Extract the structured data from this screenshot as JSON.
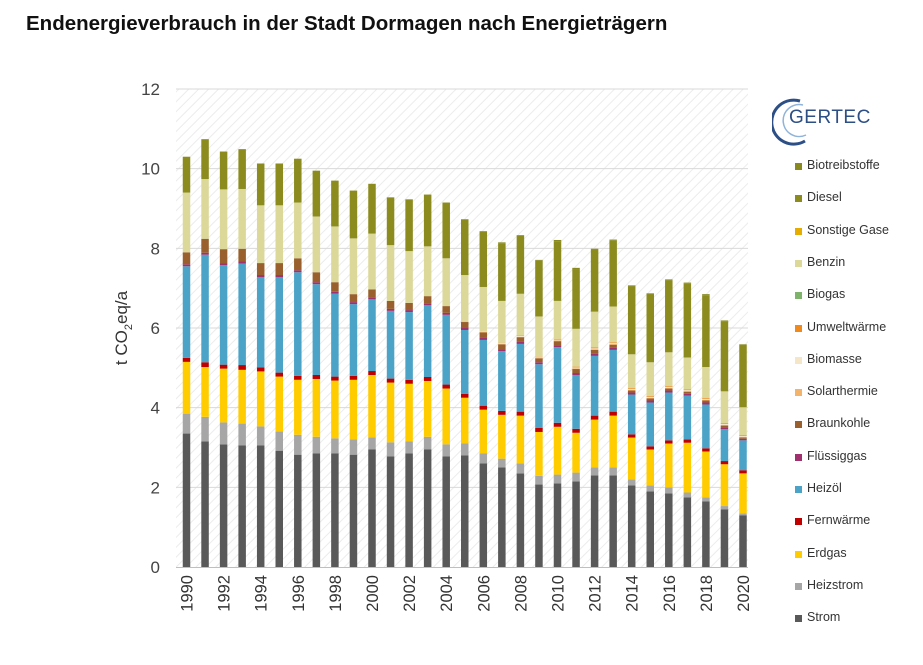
{
  "title": "Endenergieverbrauch in der Stadt Dormagen nach Energieträgern",
  "logo": {
    "text": "GERTEC"
  },
  "colors": {
    "Strom": "#595959",
    "Heizstrom": "#a6a6a6",
    "Erdgas": "#ffcc00",
    "Fernwärme": "#c00000",
    "Heizöl": "#4ba3c7",
    "Flüssiggas": "#a0306e",
    "Braunkohle": "#99602d",
    "Solarthermie": "#f3b36b",
    "Biomasse": "#f5e6c8",
    "Umweltwärme": "#f08a1c",
    "Biogas": "#7fb26a",
    "Benzin": "#dcd89a",
    "Sonstige Gase": "#e6ac00",
    "Diesel": "#8b8b1e",
    "Biotreibstoffe": "#888a20"
  },
  "chart_data": {
    "type": "bar",
    "stacked": true,
    "title": "Endenergieverbrauch in der Stadt Dormagen nach Energieträgern",
    "xlabel": "",
    "ylabel": "t CO2eq/a",
    "ylim": [
      0,
      12
    ],
    "yticks": [
      0,
      2,
      4,
      6,
      8,
      10,
      12
    ],
    "grid": true,
    "legend_position": "right",
    "categories": [
      "1990",
      "1991",
      "1992",
      "1993",
      "1994",
      "1995",
      "1996",
      "1997",
      "1998",
      "1999",
      "2000",
      "2001",
      "2002",
      "2003",
      "2004",
      "2005",
      "2006",
      "2007",
      "2008",
      "2009",
      "2010",
      "2011",
      "2012",
      "2013",
      "2014",
      "2015",
      "2016",
      "2017",
      "2018",
      "2019",
      "2020"
    ],
    "xtick_labels": [
      "1990",
      "",
      "1992",
      "",
      "1994",
      "",
      "1996",
      "",
      "1998",
      "",
      "2000",
      "",
      "2002",
      "",
      "2004",
      "",
      "2006",
      "",
      "2008",
      "",
      "2010",
      "",
      "2012",
      "",
      "2014",
      "",
      "2016",
      "",
      "2018",
      "",
      "2020"
    ],
    "series": [
      {
        "name": "Strom",
        "values": [
          3.35,
          3.15,
          3.08,
          3.05,
          3.05,
          2.92,
          2.82,
          2.85,
          2.85,
          2.82,
          2.95,
          2.78,
          2.85,
          2.95,
          2.78,
          2.8,
          2.6,
          2.5,
          2.35,
          2.07,
          2.1,
          2.15,
          2.3,
          2.3,
          2.05,
          1.9,
          1.85,
          1.75,
          1.65,
          1.45,
          1.3
        ]
      },
      {
        "name": "Heizstrom",
        "values": [
          0.5,
          0.62,
          0.55,
          0.55,
          0.48,
          0.48,
          0.5,
          0.42,
          0.38,
          0.38,
          0.3,
          0.35,
          0.3,
          0.32,
          0.3,
          0.3,
          0.25,
          0.22,
          0.25,
          0.22,
          0.22,
          0.22,
          0.2,
          0.2,
          0.15,
          0.15,
          0.15,
          0.12,
          0.1,
          0.08,
          0.05
        ]
      },
      {
        "name": "Erdgas",
        "values": [
          1.3,
          1.25,
          1.35,
          1.35,
          1.38,
          1.38,
          1.38,
          1.45,
          1.45,
          1.5,
          1.57,
          1.5,
          1.45,
          1.4,
          1.4,
          1.15,
          1.1,
          1.1,
          1.2,
          1.1,
          1.2,
          1.0,
          1.2,
          1.3,
          1.05,
          0.9,
          1.1,
          1.25,
          1.15,
          1.05,
          1.0
        ]
      },
      {
        "name": "Fernwärme",
        "values": [
          0.1,
          0.12,
          0.1,
          0.12,
          0.1,
          0.1,
          0.1,
          0.1,
          0.1,
          0.1,
          0.1,
          0.1,
          0.1,
          0.1,
          0.1,
          0.1,
          0.1,
          0.1,
          0.1,
          0.1,
          0.1,
          0.1,
          0.1,
          0.1,
          0.08,
          0.08,
          0.08,
          0.08,
          0.08,
          0.08,
          0.08
        ]
      },
      {
        "name": "Heizöl",
        "values": [
          2.3,
          2.7,
          2.5,
          2.55,
          2.27,
          2.4,
          2.6,
          2.28,
          2.08,
          1.8,
          1.8,
          1.7,
          1.7,
          1.8,
          1.75,
          1.6,
          1.65,
          1.5,
          1.7,
          1.6,
          1.9,
          1.35,
          1.5,
          1.55,
          1.0,
          1.1,
          1.2,
          1.1,
          1.1,
          0.8,
          0.75
        ]
      },
      {
        "name": "Flüssiggas",
        "values": [
          0.05,
          0.05,
          0.05,
          0.05,
          0.05,
          0.05,
          0.05,
          0.05,
          0.05,
          0.05,
          0.05,
          0.05,
          0.05,
          0.05,
          0.05,
          0.05,
          0.05,
          0.05,
          0.05,
          0.05,
          0.05,
          0.05,
          0.05,
          0.05,
          0.05,
          0.05,
          0.05,
          0.05,
          0.05,
          0.05,
          0.04
        ]
      },
      {
        "name": "Braunkohle",
        "values": [
          0.3,
          0.35,
          0.35,
          0.32,
          0.3,
          0.3,
          0.3,
          0.25,
          0.24,
          0.2,
          0.2,
          0.2,
          0.18,
          0.18,
          0.17,
          0.15,
          0.14,
          0.12,
          0.12,
          0.1,
          0.1,
          0.1,
          0.1,
          0.08,
          0.05,
          0.05,
          0.05,
          0.05,
          0.05,
          0.04,
          0.03
        ]
      },
      {
        "name": "Solarthermie",
        "values": [
          0,
          0,
          0,
          0,
          0,
          0,
          0,
          0,
          0,
          0,
          0,
          0,
          0,
          0,
          0,
          0.01,
          0.01,
          0.01,
          0.01,
          0.02,
          0.02,
          0.02,
          0.02,
          0.02,
          0.02,
          0.02,
          0.02,
          0.02,
          0.02,
          0.02,
          0.02
        ]
      },
      {
        "name": "Biomasse",
        "values": [
          0,
          0,
          0,
          0,
          0,
          0,
          0,
          0,
          0,
          0,
          0,
          0,
          0,
          0,
          0,
          0.01,
          0.02,
          0.02,
          0.02,
          0.02,
          0.02,
          0.02,
          0.02,
          0.02,
          0.02,
          0.02,
          0.02,
          0.02,
          0.02,
          0.02,
          0.02
        ]
      },
      {
        "name": "Umweltwärme",
        "values": [
          0,
          0,
          0,
          0,
          0,
          0,
          0,
          0,
          0,
          0,
          0,
          0,
          0,
          0,
          0,
          0.01,
          0.01,
          0.01,
          0.01,
          0.01,
          0.02,
          0.02,
          0.02,
          0.02,
          0.02,
          0.02,
          0.02,
          0.02,
          0.02,
          0.02,
          0.02
        ]
      },
      {
        "name": "Biogas",
        "values": [
          0,
          0,
          0,
          0,
          0,
          0,
          0,
          0,
          0,
          0,
          0,
          0,
          0,
          0,
          0,
          0,
          0,
          0,
          0,
          0,
          0,
          0,
          0,
          0,
          0,
          0,
          0,
          0,
          0,
          0,
          0
        ]
      },
      {
        "name": "Benzin",
        "values": [
          1.5,
          1.5,
          1.5,
          1.5,
          1.45,
          1.45,
          1.4,
          1.4,
          1.4,
          1.4,
          1.4,
          1.4,
          1.3,
          1.25,
          1.2,
          1.15,
          1.1,
          1.05,
          1.05,
          1.0,
          0.95,
          0.95,
          0.9,
          0.9,
          0.85,
          0.85,
          0.85,
          0.8,
          0.78,
          0.8,
          0.7
        ]
      },
      {
        "name": "Sonstige Gase",
        "values": [
          0,
          0,
          0,
          0,
          0,
          0,
          0,
          0,
          0,
          0,
          0,
          0,
          0,
          0,
          0,
          0,
          0,
          0,
          0,
          0,
          0,
          0,
          0,
          0,
          0,
          0,
          0,
          0,
          0,
          0,
          0
        ]
      },
      {
        "name": "Diesel",
        "values": [
          0.9,
          1.0,
          0.95,
          1.0,
          1.05,
          1.05,
          1.1,
          1.15,
          1.15,
          1.2,
          1.25,
          1.2,
          1.3,
          1.3,
          1.4,
          1.4,
          1.4,
          1.45,
          1.45,
          1.4,
          1.5,
          1.5,
          1.55,
          1.65,
          1.7,
          1.7,
          1.8,
          1.85,
          1.8,
          1.75,
          1.55
        ]
      },
      {
        "name": "Biotreibstoffe",
        "values": [
          0,
          0,
          0,
          0,
          0,
          0,
          0,
          0,
          0,
          0,
          0,
          0,
          0,
          0,
          0,
          0,
          0,
          0.02,
          0.02,
          0.02,
          0.03,
          0.03,
          0.03,
          0.03,
          0.03,
          0.03,
          0.03,
          0.03,
          0.03,
          0.03,
          0.03
        ]
      }
    ],
    "legend_order": [
      "Biotreibstoffe",
      "Diesel",
      "Sonstige Gase",
      "Benzin",
      "Biogas",
      "Umweltwärme",
      "Biomasse",
      "Solarthermie",
      "Braunkohle",
      "Flüssiggas",
      "Heizöl",
      "Fernwärme",
      "Erdgas",
      "Heizstrom",
      "Strom"
    ]
  }
}
